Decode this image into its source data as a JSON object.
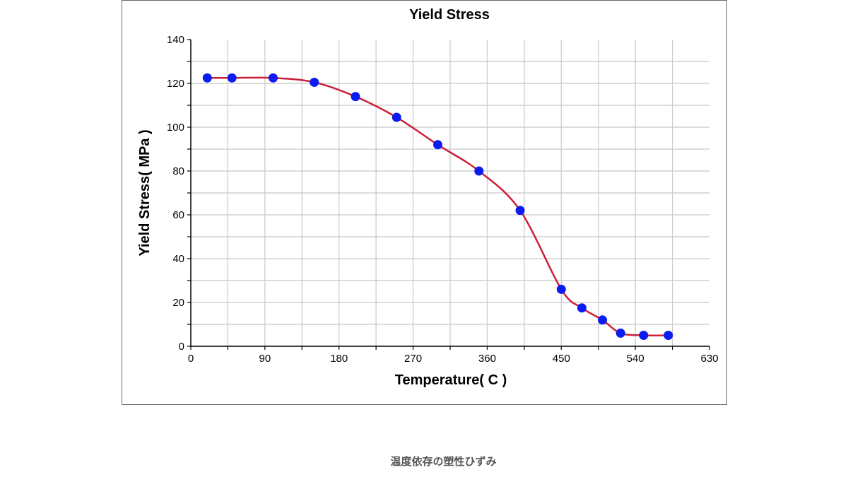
{
  "caption": "温度依存の塑性ひずみ",
  "chart_data": {
    "type": "line",
    "title": "Yield Stress",
    "xlabel": "Temperature( C )",
    "ylabel": "Yield Stress( MPa )",
    "xlim": [
      0,
      630
    ],
    "ylim": [
      0,
      140
    ],
    "xticks": [
      0,
      90,
      180,
      270,
      360,
      450,
      540,
      630
    ],
    "yticks": [
      0,
      20,
      40,
      60,
      80,
      100,
      120,
      140
    ],
    "grid": true,
    "series": [
      {
        "x": [
          20,
          50,
          100,
          150,
          200,
          250,
          300,
          350,
          400,
          450,
          475,
          500,
          522,
          550,
          580
        ],
        "values": [
          122.5,
          122.5,
          122.5,
          120.5,
          114,
          104.5,
          92,
          80,
          62,
          26,
          17.5,
          12,
          6,
          5,
          5
        ],
        "line_color": "#cc1f3a",
        "marker_color": "#0a1cf0"
      }
    ]
  }
}
